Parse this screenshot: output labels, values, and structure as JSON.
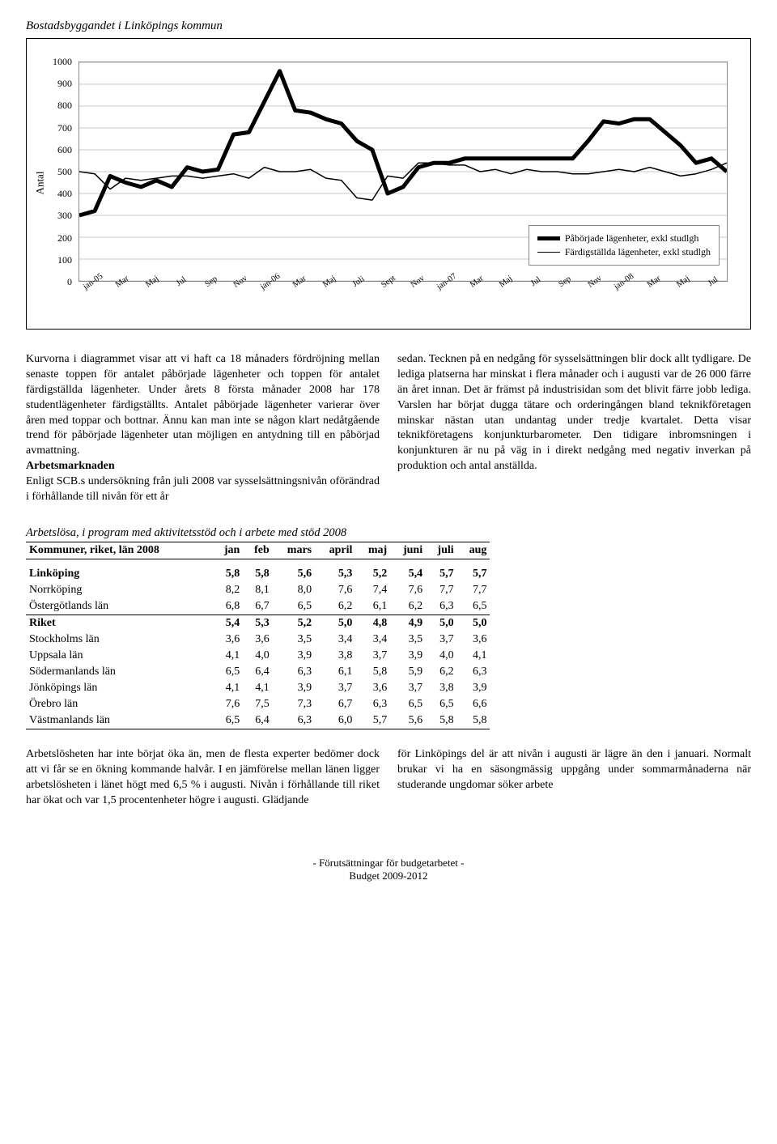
{
  "heading": "Bostadsbyggandet i Linköpings kommun",
  "chart": {
    "type": "line",
    "y_label": "Antal",
    "ylim": [
      0,
      1000
    ],
    "ytick_step": 100,
    "x_labels": [
      "jan-05",
      "Mar",
      "Maj",
      "Jul",
      "Sep",
      "Nov",
      "jan-06",
      "Mar",
      "Maj",
      "Juli",
      "Sept",
      "Nov",
      "jan-07",
      "Mar",
      "Maj",
      "Jul",
      "Sep",
      "Nov",
      "jan-08",
      "Mar",
      "Maj",
      "Jul"
    ],
    "series_thick": {
      "label": "Påbörjade lägenheter, exkl studlgh",
      "color": "#000000",
      "width": 5,
      "values": [
        300,
        320,
        480,
        450,
        430,
        460,
        430,
        520,
        500,
        510,
        670,
        680,
        820,
        960,
        780,
        770,
        740,
        720,
        640,
        600,
        400,
        430,
        520,
        540,
        540,
        560,
        560,
        560,
        560,
        560,
        560,
        560,
        560,
        640,
        730,
        720,
        740,
        740,
        680,
        620,
        540,
        560,
        500
      ]
    },
    "series_thin": {
      "label": "Färdigställda lägenheter, exkl studlgh",
      "color": "#000000",
      "width": 1.5,
      "values": [
        500,
        490,
        420,
        470,
        460,
        470,
        480,
        480,
        470,
        480,
        490,
        470,
        520,
        500,
        500,
        510,
        470,
        460,
        380,
        370,
        480,
        470,
        540,
        540,
        530,
        530,
        500,
        510,
        490,
        510,
        500,
        500,
        490,
        490,
        500,
        510,
        500,
        520,
        500,
        480,
        490,
        510,
        540
      ]
    },
    "grid_color": "#c8c8c8",
    "background_color": "#ffffff"
  },
  "col_left_p1": "Kurvorna i diagrammet visar att vi haft ca 18 månaders fördröjning mellan senaste toppen för antalet påbörjade lägenheter och toppen för antalet färdigställda lägenheter. Under årets 8 första månader 2008 har 178 studentlägenheter färdigställts. Antalet påbörjade lägenheter varierar över åren med toppar och bottnar. Ännu kan man inte se någon klart nedåtgående trend för påbörjade lägenheter utan möjligen en antydning till en påbörjad avmattning.",
  "col_left_head": "Arbetsmarknaden",
  "col_left_p2": "Enligt SCB.s undersökning från juli 2008 var sysselsättningsnivån oförändrad i förhållande till nivån för ett år",
  "col_right_p1": "sedan. Tecknen på en nedgång för sysselsättningen blir dock allt tydligare. De lediga platserna har minskat i flera månader och i augusti var de 26 000 färre än året innan. Det är främst på industrisidan som det blivit färre jobb lediga. Varslen har börjat dugga tätare och orderingången bland teknikföretagen minskar nästan utan undantag under tredje kvartalet. Detta visar teknikföretagens konjunkturbarometer. Den tidigare inbromsningen i konjunkturen är nu på väg in i direkt nedgång med negativ inverkan på produktion och antal anställda.",
  "table": {
    "title": "Arbetslösa, i program med aktivitetsstöd och i arbete med stöd 2008",
    "row_header": "Kommuner, riket, län 2008",
    "columns": [
      "jan",
      "feb",
      "mars",
      "april",
      "maj",
      "juni",
      "juli",
      "aug"
    ],
    "rows": [
      {
        "name": "Linköping",
        "vals": [
          "5,8",
          "5,8",
          "5,6",
          "5,3",
          "5,2",
          "5,4",
          "5,7",
          "5,7"
        ],
        "bold": true,
        "topspace": true
      },
      {
        "name": "Norrköping",
        "vals": [
          "8,2",
          "8,1",
          "8,0",
          "7,6",
          "7,4",
          "7,6",
          "7,7",
          "7,7"
        ]
      },
      {
        "name": "Östergötlands län",
        "vals": [
          "6,8",
          "6,7",
          "6,5",
          "6,2",
          "6,1",
          "6,2",
          "6,3",
          "6,5"
        ],
        "rule": true
      },
      {
        "name": "Riket",
        "vals": [
          "5,4",
          "5,3",
          "5,2",
          "5,0",
          "4,8",
          "4,9",
          "5,0",
          "5,0"
        ],
        "bold": true
      },
      {
        "name": "Stockholms län",
        "vals": [
          "3,6",
          "3,6",
          "3,5",
          "3,4",
          "3,4",
          "3,5",
          "3,7",
          "3,6"
        ]
      },
      {
        "name": "Uppsala län",
        "vals": [
          "4,1",
          "4,0",
          "3,9",
          "3,8",
          "3,7",
          "3,9",
          "4,0",
          "4,1"
        ]
      },
      {
        "name": "Södermanlands län",
        "vals": [
          "6,5",
          "6,4",
          "6,3",
          "6,1",
          "5,8",
          "5,9",
          "6,2",
          "6,3"
        ]
      },
      {
        "name": "Jönköpings län",
        "vals": [
          "4,1",
          "4,1",
          "3,9",
          "3,7",
          "3,6",
          "3,7",
          "3,8",
          "3,9"
        ]
      },
      {
        "name": "Örebro län",
        "vals": [
          "7,6",
          "7,5",
          "7,3",
          "6,7",
          "6,3",
          "6,5",
          "6,5",
          "6,6"
        ]
      },
      {
        "name": "Västmanlands län",
        "vals": [
          "6,5",
          "6,4",
          "6,3",
          "6,0",
          "5,7",
          "5,6",
          "5,8",
          "5,8"
        ]
      }
    ]
  },
  "bottom_left": "Arbetslösheten har inte börjat öka än, men de flesta experter bedömer dock att vi får se en ökning kommande halvår. I en jämförelse mellan länen ligger arbetslösheten i länet högt med 6,5 % i augusti. Nivån i förhållande till riket har ökat och var 1,5 procentenheter högre i augusti. Glädjande",
  "bottom_right": "för Linköpings del är att nivån i augusti är lägre än den i januari. Normalt brukar vi ha en säsongmässig uppgång under sommarmånaderna när studerande ungdomar söker arbete",
  "footer_1": "- Förutsättningar för budgetarbetet -",
  "footer_2": "Budget 2009-2012"
}
